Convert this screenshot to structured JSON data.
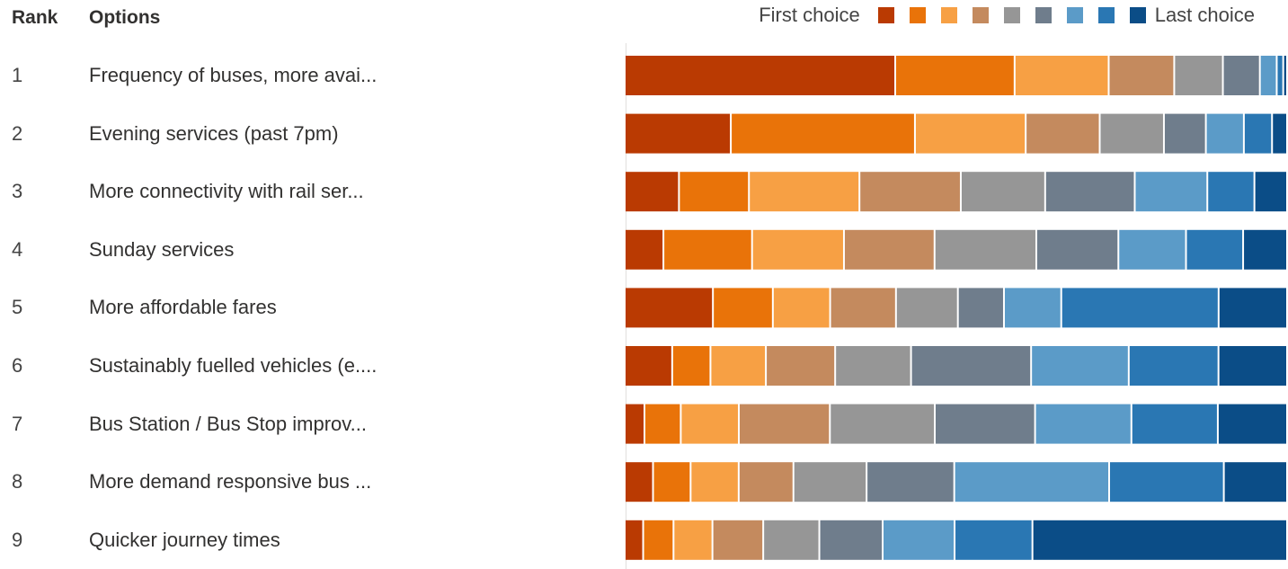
{
  "header": {
    "rank_label": "Rank",
    "options_label": "Options"
  },
  "legend": {
    "first_label": "First choice",
    "last_label": "Last choice",
    "colors": [
      "#BA3A02",
      "#E97309",
      "#F7A044",
      "#C48A5E",
      "#969696",
      "#6F7D8C",
      "#5B9BC8",
      "#2A77B3",
      "#0B4D87"
    ]
  },
  "chart_data": {
    "type": "bar",
    "stacked": true,
    "orientation": "horizontal",
    "legend_position": "top-right",
    "grid": false,
    "categories": [
      "Frequency of buses, more avai...",
      "Evening services (past 7pm)",
      "More connectivity with rail ser...",
      "Sunday services",
      "More affordable fares",
      "Sustainably fuelled vehicles (e....",
      "Bus Station / Bus Stop improv...",
      "More demand responsive bus ...",
      "Quicker journey times"
    ],
    "ranks": [
      "1",
      "2",
      "3",
      "4",
      "5",
      "6",
      "7",
      "8",
      "9"
    ],
    "choice_levels": [
      "1",
      "2",
      "3",
      "4",
      "5",
      "6",
      "7",
      "8",
      "9"
    ],
    "colors": [
      "#BA3A02",
      "#E97309",
      "#F7A044",
      "#C48A5E",
      "#969696",
      "#6F7D8C",
      "#5B9BC8",
      "#2A77B3",
      "#0B4D87"
    ],
    "rows": [
      [
        41.7,
        18.4,
        14.5,
        10.1,
        7.5,
        5.7,
        2.6,
        1.0,
        0.6
      ],
      [
        16.2,
        28.1,
        16.9,
        11.3,
        9.8,
        6.4,
        5.8,
        4.3,
        2.3
      ],
      [
        8.3,
        10.7,
        16.9,
        15.5,
        12.9,
        13.7,
        11.1,
        7.2,
        5.0
      ],
      [
        5.9,
        13.5,
        14.0,
        13.8,
        15.5,
        12.5,
        10.3,
        8.7,
        6.7
      ],
      [
        13.4,
        9.1,
        8.7,
        10.0,
        9.4,
        7.0,
        8.7,
        23.9,
        10.4
      ],
      [
        7.2,
        5.8,
        8.4,
        10.5,
        11.5,
        18.2,
        14.8,
        13.6,
        10.4
      ],
      [
        3.0,
        5.5,
        8.8,
        13.8,
        15.9,
        15.2,
        14.6,
        13.1,
        10.5
      ],
      [
        4.3,
        5.7,
        7.3,
        8.3,
        11.1,
        13.3,
        23.5,
        17.4,
        9.6
      ],
      [
        2.8,
        4.6,
        5.9,
        7.7,
        8.5,
        9.6,
        10.9,
        11.8,
        38.6
      ]
    ]
  }
}
